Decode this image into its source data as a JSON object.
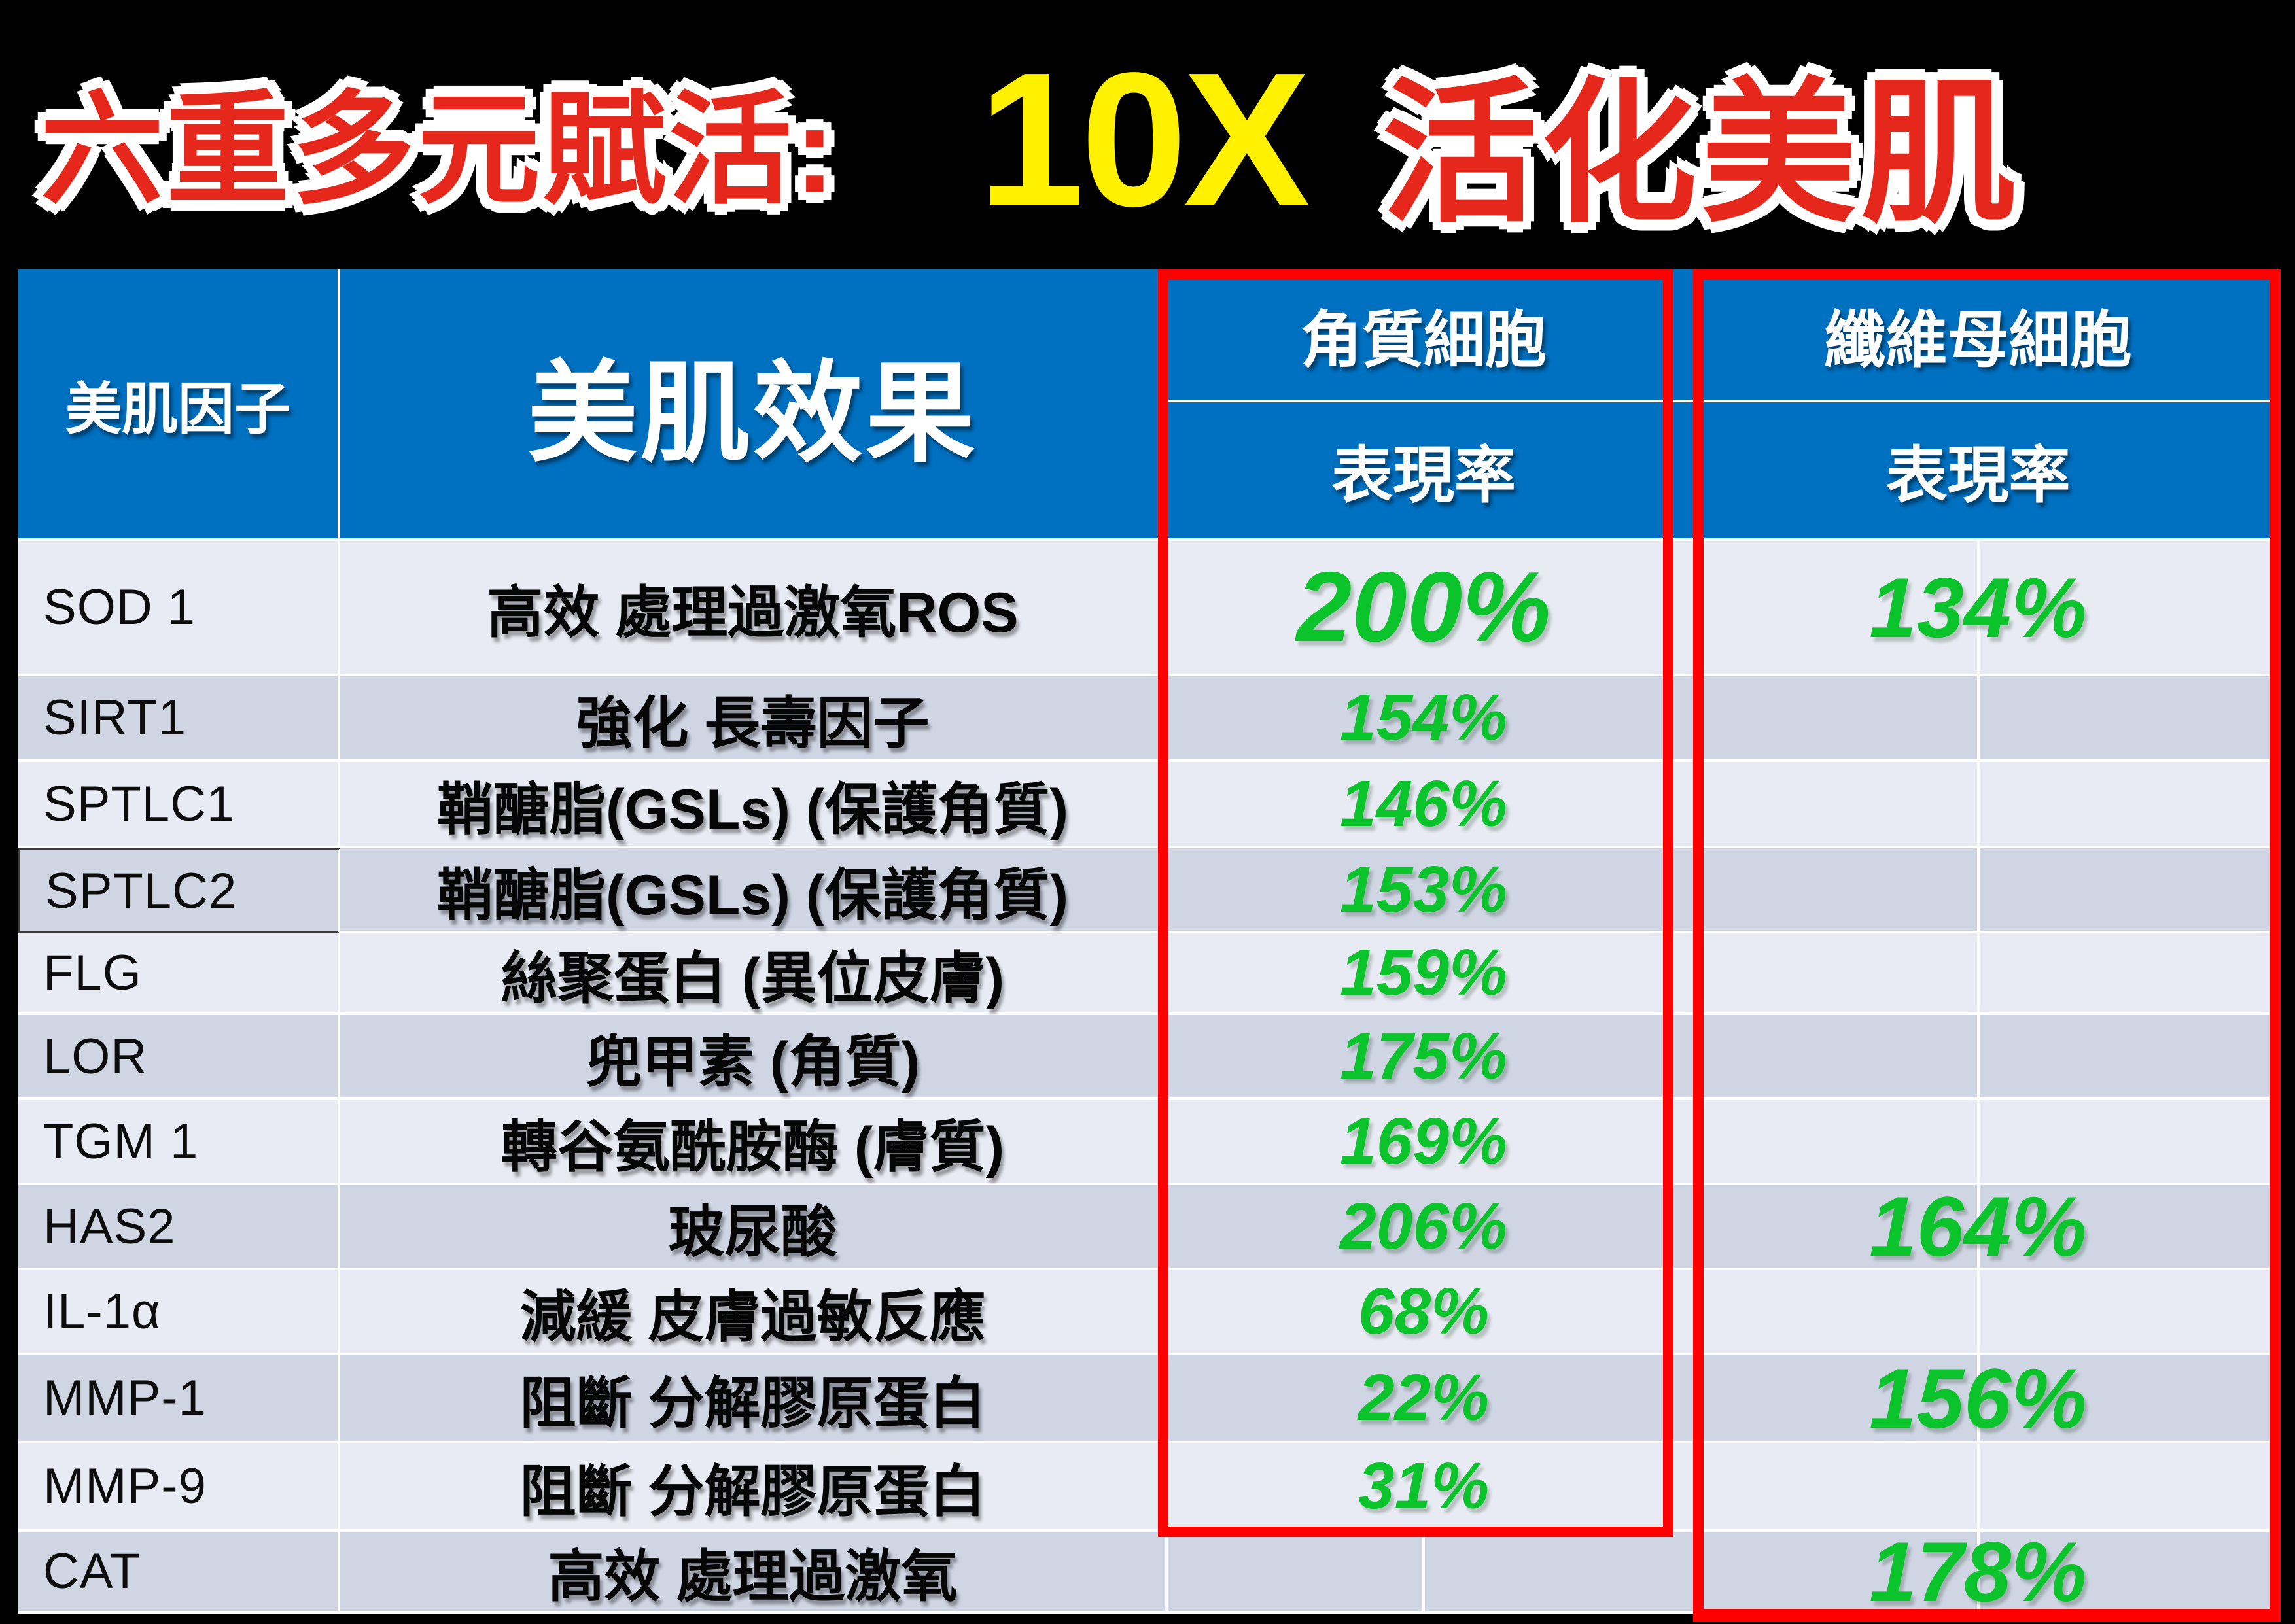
{
  "slide_title": {
    "left": "六重多元賦活:",
    "multiplier": "10X",
    "right": "活化美肌"
  },
  "table": {
    "factor_header": "美肌因子",
    "effect_header": "美肌效果",
    "groups": [
      {
        "header": "角質細胞",
        "subheader": "表現率"
      },
      {
        "header": "纖維母細胞",
        "subheader": "表現率"
      }
    ],
    "rows": [
      {
        "factor": "SOD 1",
        "effect": "高效 處理過激氧ROS",
        "keratinocyte": "200%",
        "fibroblast": "134%",
        "k_size": "xl",
        "f_size": "lg",
        "boxed": false
      },
      {
        "factor": "SIRT1",
        "effect": "強化 長壽因子",
        "keratinocyte": "154%",
        "fibroblast": "",
        "k_size": "md",
        "f_size": "lg",
        "boxed": false
      },
      {
        "factor": "SPTLC1",
        "effect": "鞘醣脂(GSLs) (保護角質)",
        "keratinocyte": "146%",
        "fibroblast": "",
        "k_size": "md",
        "f_size": "lg",
        "boxed": false
      },
      {
        "factor": "SPTLC2",
        "effect": "鞘醣脂(GSLs) (保護角質)",
        "keratinocyte": "153%",
        "fibroblast": "",
        "k_size": "md",
        "f_size": "lg",
        "boxed": true
      },
      {
        "factor": "FLG",
        "effect": "絲聚蛋白 (異位皮膚)",
        "keratinocyte": "159%",
        "fibroblast": "",
        "k_size": "md",
        "f_size": "lg",
        "boxed": false
      },
      {
        "factor": "LOR",
        "effect": "兜甲素 (角質)",
        "keratinocyte": "175%",
        "fibroblast": "",
        "k_size": "md",
        "f_size": "lg",
        "boxed": false
      },
      {
        "factor": "TGM 1",
        "effect": "轉谷氨酰胺酶 (膚質)",
        "keratinocyte": "169%",
        "fibroblast": "",
        "k_size": "md",
        "f_size": "lg",
        "boxed": false
      },
      {
        "factor": "HAS2",
        "effect": "玻尿酸",
        "keratinocyte": "206%",
        "fibroblast": "164%",
        "k_size": "md",
        "f_size": "lg",
        "boxed": false
      },
      {
        "factor": "IL-1α",
        "effect": "減緩 皮膚過敏反應",
        "keratinocyte": "68%",
        "fibroblast": "",
        "k_size": "md",
        "f_size": "lg",
        "boxed": false
      },
      {
        "factor": "MMP-1",
        "effect": "阻斷 分解膠原蛋白",
        "keratinocyte": "22%",
        "fibroblast": "156%",
        "k_size": "md",
        "f_size": "lg",
        "boxed": false
      },
      {
        "factor": "MMP-9",
        "effect": "阻斷 分解膠原蛋白",
        "keratinocyte": "31%",
        "fibroblast": "",
        "k_size": "md",
        "f_size": "lg",
        "boxed": false
      },
      {
        "factor": "CAT",
        "effect": "高效 處理過激氧",
        "keratinocyte": "",
        "fibroblast": "178%",
        "k_size": "md",
        "f_size": "lg",
        "boxed": false
      }
    ]
  },
  "colors": {
    "header_blue": "#0070C0",
    "row_light": "#E9EBF4",
    "row_dark": "#D0D5E4",
    "value_green": "#0BC32B",
    "highlight_red": "#FE0000",
    "title_red": "#E5281B",
    "title_yellow": "#FFF100",
    "divider_white": "#FFFFFF"
  }
}
